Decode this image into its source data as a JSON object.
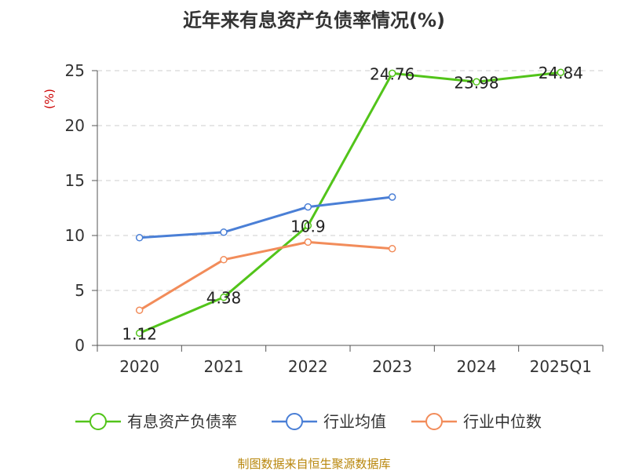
{
  "chart_data": {
    "type": "line",
    "title": "近年来有息资产负债率情况(%)",
    "y_unit": "(%)",
    "categories": [
      "2020",
      "2021",
      "2022",
      "2023",
      "2024",
      "2025Q1"
    ],
    "ylim": [
      0,
      25
    ],
    "yticks": [
      0,
      5,
      10,
      15,
      20,
      25
    ],
    "grid": true,
    "legend_position": "bottom",
    "series": [
      {
        "name": "有息资产负债率",
        "color": "#52c41a",
        "values": [
          1.12,
          4.38,
          10.9,
          24.76,
          23.98,
          24.84
        ],
        "labels": [
          "1.12",
          "4.38",
          "10.9",
          "24.76",
          "23.98",
          "24.84"
        ]
      },
      {
        "name": "行业均值",
        "color": "#4a7fd6",
        "values": [
          9.8,
          10.3,
          12.6,
          13.5,
          null,
          null
        ]
      },
      {
        "name": "行业中位数",
        "color": "#f28c5a",
        "values": [
          3.2,
          7.8,
          9.4,
          8.8,
          null,
          null
        ]
      }
    ]
  },
  "footer": {
    "source": "制图数据来自恒生聚源数据库"
  }
}
